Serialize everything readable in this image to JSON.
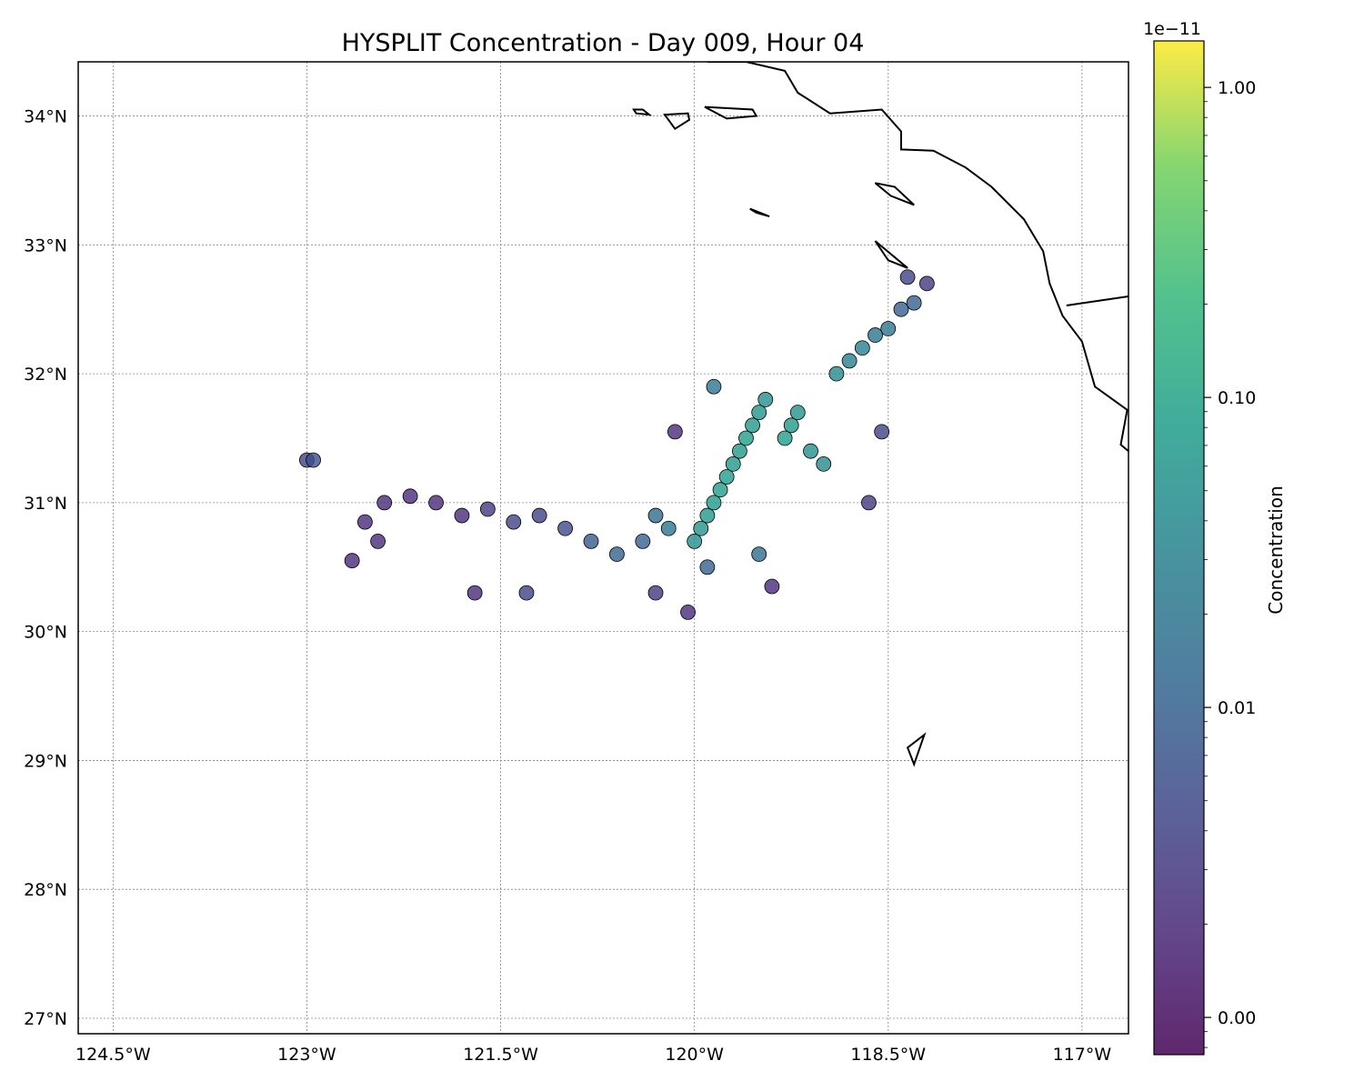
{
  "title": "HYSPLIT Concentration - Day 009, Hour 04",
  "colorbar": {
    "label": "Concentration",
    "offset_text": "1e−11",
    "ticks": [
      {
        "label": "1.00",
        "exp": 0
      },
      {
        "label": "0.10",
        "exp": -1
      },
      {
        "label": "0.01",
        "exp": -2
      },
      {
        "label": "0.00",
        "exp": -3
      }
    ],
    "log_range": [
      -3.12,
      0.15
    ],
    "colormap": "viridis"
  },
  "map": {
    "lon_range": [
      -124.77,
      -116.64
    ],
    "lat_range": [
      26.88,
      34.42
    ],
    "gridlines": true,
    "lon_ticks": [
      {
        "value": -124.5,
        "label": "124.5°W"
      },
      {
        "value": -123.0,
        "label": "123°W"
      },
      {
        "value": -121.5,
        "label": "121.5°W"
      },
      {
        "value": -120.0,
        "label": "120°W"
      },
      {
        "value": -118.5,
        "label": "118.5°W"
      },
      {
        "value": -117.0,
        "label": "117°W"
      }
    ],
    "lat_ticks": [
      {
        "value": 34,
        "label": "34°N"
      },
      {
        "value": 33,
        "label": "33°N"
      },
      {
        "value": 32,
        "label": "32°N"
      },
      {
        "value": 31,
        "label": "31°N"
      },
      {
        "value": 30,
        "label": "30°N"
      },
      {
        "value": 29,
        "label": "29°N"
      },
      {
        "value": 28,
        "label": "28°N"
      },
      {
        "value": 27,
        "label": "27°N"
      }
    ],
    "coastline": [
      [
        -119.9,
        34.42
      ],
      [
        -119.6,
        34.42
      ],
      [
        -119.3,
        34.35
      ],
      [
        -119.2,
        34.18
      ],
      [
        -118.95,
        34.02
      ],
      [
        -118.55,
        34.05
      ],
      [
        -118.4,
        33.88
      ],
      [
        -118.4,
        33.74
      ],
      [
        -118.15,
        33.73
      ],
      [
        -117.9,
        33.6
      ],
      [
        -117.7,
        33.45
      ],
      [
        -117.45,
        33.2
      ],
      [
        -117.3,
        32.95
      ],
      [
        -117.25,
        32.7
      ],
      [
        -117.15,
        32.45
      ],
      [
        -117.0,
        32.25
      ],
      [
        -116.9,
        31.9
      ],
      [
        -116.65,
        31.72
      ],
      [
        -116.7,
        31.45
      ],
      [
        -116.52,
        31.3
      ]
    ],
    "border": [
      [
        -117.12,
        32.53
      ],
      [
        -116.64,
        32.6
      ]
    ],
    "islands": [
      [
        [
          -120.47,
          34.05
        ],
        [
          -120.4,
          34.05
        ],
        [
          -120.35,
          34.01
        ],
        [
          -120.45,
          34.02
        ],
        [
          -120.47,
          34.05
        ]
      ],
      [
        [
          -120.23,
          34.01
        ],
        [
          -120.05,
          34.02
        ],
        [
          -120.04,
          33.97
        ],
        [
          -120.15,
          33.9
        ],
        [
          -120.23,
          34.01
        ]
      ],
      [
        [
          -119.92,
          34.07
        ],
        [
          -119.55,
          34.05
        ],
        [
          -119.52,
          34.0
        ],
        [
          -119.75,
          33.98
        ],
        [
          -119.92,
          34.07
        ]
      ],
      [
        [
          -118.6,
          33.48
        ],
        [
          -118.45,
          33.45
        ],
        [
          -118.3,
          33.31
        ],
        [
          -118.48,
          33.38
        ],
        [
          -118.6,
          33.48
        ]
      ],
      [
        [
          -119.57,
          33.28
        ],
        [
          -119.42,
          33.22
        ],
        [
          -119.52,
          33.25
        ],
        [
          -119.57,
          33.28
        ]
      ],
      [
        [
          -118.6,
          33.03
        ],
        [
          -118.35,
          32.82
        ],
        [
          -118.5,
          32.88
        ],
        [
          -118.6,
          33.03
        ]
      ],
      [
        [
          -118.3,
          28.97
        ],
        [
          -118.22,
          29.2
        ],
        [
          -118.35,
          29.1
        ],
        [
          -118.3,
          28.97
        ]
      ]
    ]
  },
  "chart_data": {
    "type": "scatter",
    "title": "HYSPLIT Concentration - Day 009, Hour 04",
    "xlabel": "",
    "ylabel": "",
    "x_units": "degrees longitude",
    "y_units": "degrees latitude",
    "value_units": "×1e−11 (log color scale)",
    "ylim": [
      26.88,
      34.42
    ],
    "xlim": [
      -124.77,
      -116.64
    ],
    "grid": true,
    "series": [
      {
        "points": [
          [
            -120.0,
            30.7,
            0.05
          ],
          [
            -119.95,
            30.8,
            0.06
          ],
          [
            -119.9,
            30.9,
            0.07
          ],
          [
            -119.85,
            31.0,
            0.07
          ],
          [
            -119.8,
            31.1,
            0.08
          ],
          [
            -119.75,
            31.2,
            0.08
          ],
          [
            -119.7,
            31.3,
            0.07
          ],
          [
            -119.65,
            31.4,
            0.07
          ],
          [
            -119.6,
            31.5,
            0.08
          ],
          [
            -119.55,
            31.6,
            0.07
          ],
          [
            -119.5,
            31.7,
            0.06
          ],
          [
            -119.45,
            31.8,
            0.05
          ],
          [
            -119.3,
            31.5,
            0.08
          ],
          [
            -119.25,
            31.6,
            0.07
          ],
          [
            -119.2,
            31.7,
            0.06
          ],
          [
            -119.1,
            31.4,
            0.05
          ],
          [
            -119.0,
            31.3,
            0.04
          ],
          [
            -118.9,
            32.0,
            0.04
          ],
          [
            -118.8,
            32.1,
            0.03
          ],
          [
            -118.7,
            32.2,
            0.03
          ],
          [
            -118.6,
            32.3,
            0.02
          ],
          [
            -118.5,
            32.35,
            0.02
          ],
          [
            -118.4,
            32.5,
            0.01
          ],
          [
            -118.3,
            32.55,
            0.01
          ],
          [
            -118.35,
            32.75,
            0.004
          ],
          [
            -118.2,
            32.7,
            0.003
          ],
          [
            -119.85,
            31.9,
            0.02
          ],
          [
            -120.2,
            30.8,
            0.02
          ],
          [
            -120.3,
            30.9,
            0.015
          ],
          [
            -120.4,
            30.7,
            0.01
          ],
          [
            -120.6,
            30.6,
            0.01
          ],
          [
            -120.8,
            30.7,
            0.008
          ],
          [
            -121.0,
            30.8,
            0.005
          ],
          [
            -121.2,
            30.9,
            0.004
          ],
          [
            -121.4,
            30.85,
            0.004
          ],
          [
            -121.6,
            30.95,
            0.003
          ],
          [
            -121.8,
            30.9,
            0.002
          ],
          [
            -122.0,
            31.0,
            0.002
          ],
          [
            -122.2,
            31.05,
            0.002
          ],
          [
            -122.4,
            31.0,
            0.002
          ],
          [
            -122.55,
            30.85,
            0.002
          ],
          [
            -122.65,
            30.55,
            0.002
          ],
          [
            -122.45,
            30.7,
            0.002
          ],
          [
            -123.0,
            31.33,
            0.004
          ],
          [
            -122.95,
            31.33,
            0.006
          ],
          [
            -120.15,
            31.55,
            0.002
          ],
          [
            -120.05,
            30.15,
            0.002
          ],
          [
            -120.3,
            30.3,
            0.003
          ],
          [
            -121.3,
            30.3,
            0.004
          ],
          [
            -121.7,
            30.3,
            0.002
          ],
          [
            -119.4,
            30.35,
            0.002
          ],
          [
            -119.9,
            30.5,
            0.01
          ],
          [
            -119.5,
            30.6,
            0.015
          ],
          [
            -118.65,
            31.0,
            0.003
          ],
          [
            -118.55,
            31.55,
            0.004
          ]
        ]
      }
    ]
  }
}
